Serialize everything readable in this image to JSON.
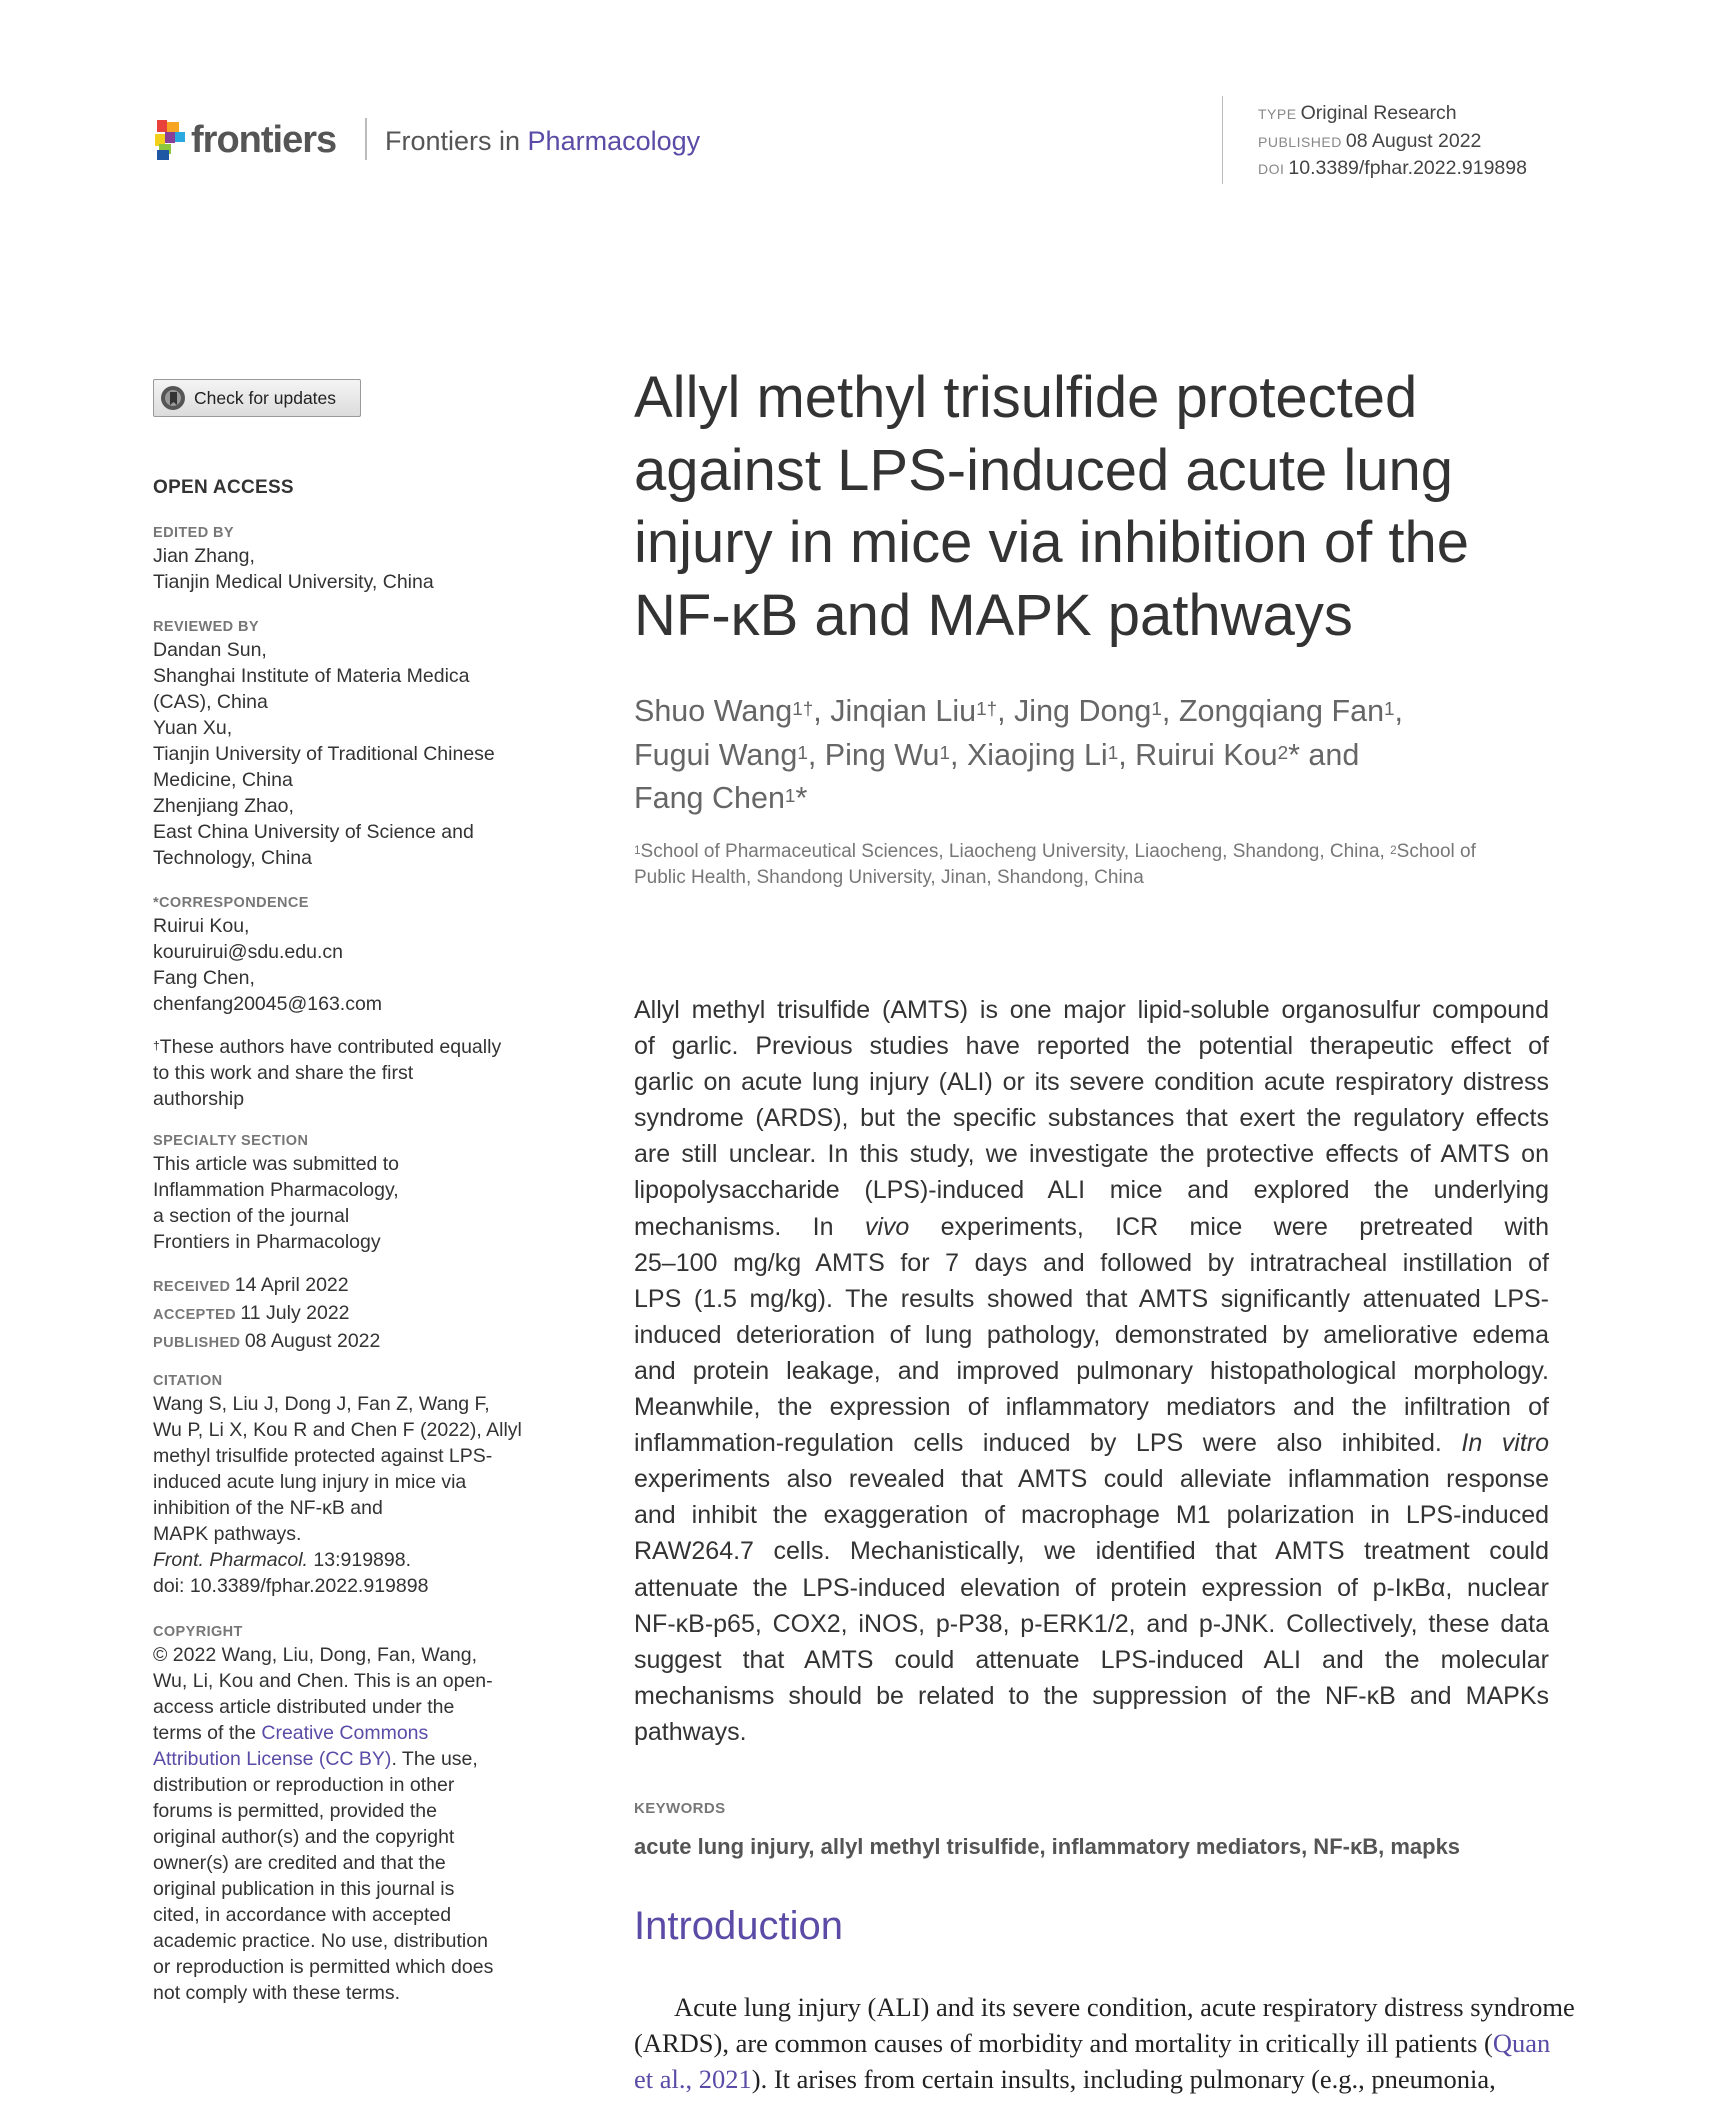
{
  "header": {
    "logo_text": "frontiers",
    "journal_prefix": "Frontiers in ",
    "journal_name": "Pharmacology",
    "type_label": "TYPE",
    "type_value": "Original Research",
    "published_label": "PUBLISHED",
    "published_value": "08 August 2022",
    "doi_label": "DOI",
    "doi_value": "10.3389/fphar.2022.919898"
  },
  "colors": {
    "accent": "#5b4ba6",
    "text": "#333333"
  },
  "sidebar": {
    "check_updates": "Check for updates",
    "open_access": "OPEN ACCESS",
    "blocks": [
      {
        "label": "EDITED BY",
        "lines": [
          "Jian Zhang,",
          "Tianjin Medical University, China"
        ]
      },
      {
        "label": "REVIEWED BY",
        "lines": [
          "Dandan Sun,",
          "Shanghai Institute of Materia Medica",
          "(CAS), China",
          "Yuan Xu,",
          "Tianjin University of Traditional Chinese",
          "Medicine, China",
          "Zhenjiang Zhao,",
          "East China University of Science and",
          "Technology, China"
        ]
      },
      {
        "label": "*CORRESPONDENCE",
        "lines": [
          "Ruirui Kou,",
          "kouruirui@sdu.edu.cn",
          "Fang Chen,",
          "chenfang20045@163.com"
        ]
      },
      {
        "label": "",
        "lines": [
          [
            {
              "t": "†",
              "s": "sup"
            },
            {
              "t": "These authors have contributed equally"
            }
          ],
          "to this work and share the first",
          "authorship"
        ]
      },
      {
        "label": "SPECIALTY SECTION",
        "lines": [
          "This article was submitted to",
          "Inflammation Pharmacology,",
          "a section of the journal",
          "Frontiers in Pharmacology"
        ]
      },
      {
        "label": "",
        "lines": [
          [
            {
              "t": "RECEIVED ",
              "s": "lbl"
            },
            {
              "t": "14 April 2022"
            }
          ],
          [
            {
              "t": "ACCEPTED ",
              "s": "lbl"
            },
            {
              "t": "11 July 2022"
            }
          ],
          [
            {
              "t": "PUBLISHED ",
              "s": "lbl"
            },
            {
              "t": "08 August 2022"
            }
          ]
        ]
      },
      {
        "label": "CITATION",
        "lines": [
          "Wang S, Liu J, Dong J, Fan Z, Wang F,",
          "Wu P, Li X, Kou R and Chen F (2022), Allyl",
          "methyl trisulfide protected against LPS-",
          "induced acute lung injury in mice via",
          "inhibition of the NF-κB and",
          "MAPK pathways.",
          [
            {
              "t": "Front. Pharmacol.",
              "s": "it"
            },
            {
              "t": " 13:919898."
            }
          ],
          "doi: 10.3389/fphar.2022.919898"
        ]
      },
      {
        "label": "COPYRIGHT",
        "lines": [
          "© 2022 Wang, Liu, Dong, Fan, Wang,",
          "Wu, Li, Kou and Chen. This is an open-",
          "access article distributed under the",
          [
            {
              "t": "terms of the "
            },
            {
              "t": "Creative Commons",
              "s": "lnk"
            }
          ],
          [
            {
              "t": "Attribution License (CC BY)",
              "s": "lnk"
            },
            {
              "t": ". The use,"
            }
          ],
          "distribution or reproduction in other",
          "forums is permitted, provided the",
          "original author(s) and the copyright",
          "owner(s) are credited and that the",
          "original publication in this journal is",
          "cited, in accordance with accepted",
          "academic practice. No use, distribution",
          "or reproduction is permitted which does",
          "not comply with these terms."
        ]
      }
    ]
  },
  "article": {
    "title_lines": [
      "Allyl methyl trisulfide protected",
      "against LPS-induced acute lung",
      "injury in mice via inhibition of the",
      "NF-κB and MAPK pathways"
    ],
    "author_lines": [
      [
        {
          "t": "Shuo Wang"
        },
        {
          "t": "1†",
          "s": "sup"
        },
        {
          "t": ", Jinqian Liu"
        },
        {
          "t": "1†",
          "s": "sup"
        },
        {
          "t": ", Jing Dong"
        },
        {
          "t": "1",
          "s": "sup"
        },
        {
          "t": ", Zongqiang Fan"
        },
        {
          "t": "1",
          "s": "sup"
        },
        {
          "t": ","
        }
      ],
      [
        {
          "t": "Fugui Wang"
        },
        {
          "t": "1",
          "s": "sup"
        },
        {
          "t": ", Ping Wu"
        },
        {
          "t": "1",
          "s": "sup"
        },
        {
          "t": ", Xiaojing Li"
        },
        {
          "t": "1",
          "s": "sup"
        },
        {
          "t": ", Ruirui Kou"
        },
        {
          "t": "2",
          "s": "sup"
        },
        {
          "t": "* and"
        }
      ],
      [
        {
          "t": "Fang Chen"
        },
        {
          "t": "1",
          "s": "sup"
        },
        {
          "t": "*"
        }
      ]
    ],
    "affiliation_lines": [
      [
        {
          "t": "1",
          "s": "sup"
        },
        {
          "t": "School of Pharmaceutical Sciences, Liaocheng University, Liaocheng, Shandong, China, "
        },
        {
          "t": "2",
          "s": "sup"
        },
        {
          "t": "School of"
        }
      ],
      "Public Health, Shandong University, Jinan, Shandong, China"
    ],
    "abstract_lines": [
      "Allyl methyl trisulfide (AMTS) is one major lipid-soluble organosulfur compound",
      "of garlic. Previous studies have reported the potential therapeutic effect of",
      "garlic on acute lung injury (ALI) or its severe condition acute respiratory distress",
      "syndrome (ARDS), but the specific substances that exert the regulatory effects",
      "are still unclear. In this study, we investigate the protective effects of AMTS on",
      "lipopolysaccharide (LPS)-induced ALI mice and explored the underlying",
      [
        {
          "t": "mechanisms. In "
        },
        {
          "t": "vivo",
          "s": "it"
        },
        {
          "t": " experiments, ICR mice were pretreated with"
        }
      ],
      "25–100 mg/kg AMTS for 7 days and followed by intratracheal instillation of",
      "LPS (1.5 mg/kg). The results showed that AMTS significantly attenuated LPS-",
      "induced deterioration of lung pathology, demonstrated by ameliorative edema",
      "and protein leakage, and improved pulmonary histopathological morphology.",
      "Meanwhile, the expression of inflammatory mediators and the infiltration of",
      [
        {
          "t": "inflammation-regulation cells induced by LPS were also inhibited. "
        },
        {
          "t": "In vitro",
          "s": "it"
        }
      ],
      "experiments also revealed that AMTS could alleviate inflammation response",
      "and inhibit the exaggeration of macrophage M1 polarization in LPS-induced",
      "RAW264.7 cells. Mechanistically, we identified that AMTS treatment could",
      "attenuate the LPS-induced elevation of protein expression of p-IκBα, nuclear",
      "NF-κB-p65, COX2, iNOS, p-P38, p-ERK1/2, and p-JNK. Collectively, these data",
      "suggest that AMTS could attenuate LPS-induced ALI and the molecular",
      "mechanisms should be related to the suppression of the NF-κB and MAPKs",
      "pathways."
    ],
    "keywords_label": "KEYWORDS",
    "keywords": "acute lung injury, allyl methyl trisulfide, inflammatory mediators, NF-κB, mapks",
    "intro_heading": "Introduction",
    "intro_lines": [
      "Acute lung injury (ALI) and its severe condition, acute respiratory distress syndrome",
      [
        {
          "t": "(ARDS), are common causes of morbidity and mortality in critically ill patients ("
        },
        {
          "t": "Quan",
          "s": "lnk"
        }
      ],
      [
        {
          "t": "et al., 2021",
          "s": "lnk"
        },
        {
          "t": "). It arises from certain insults, including pulmonary (e.g., pneumonia,"
        }
      ]
    ]
  }
}
